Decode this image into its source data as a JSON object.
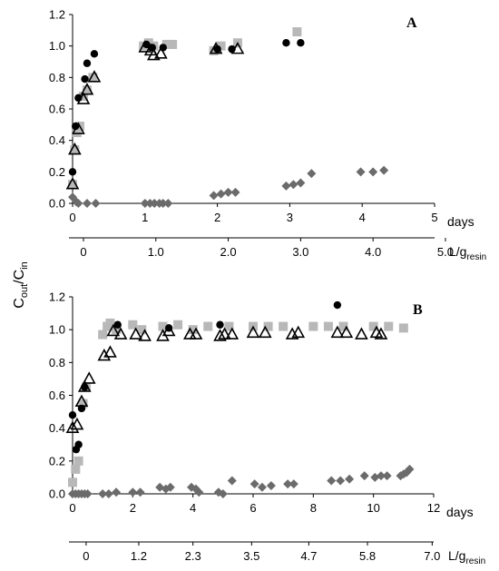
{
  "ylabel": {
    "main": "C",
    "sub1": "out",
    "sep": "/C",
    "sub2": "in"
  },
  "chart_data": [
    {
      "panel": "A",
      "type": "scatter",
      "title": "",
      "ylim": [
        0,
        1.2
      ],
      "yticks": [
        "0.0",
        "0.2",
        "0.4",
        "0.6",
        "0.8",
        "1.0",
        "1.2"
      ],
      "x_days": {
        "label": "days",
        "range": [
          0,
          5
        ],
        "ticks": [
          "0",
          "1",
          "2",
          "3",
          "4",
          "5"
        ]
      },
      "x_volume": {
        "label": "L/g",
        "label_sub": "resin",
        "ticks": [
          {
            "day": 0.15,
            "text": "0"
          },
          {
            "day": 1.15,
            "text": "1.0"
          },
          {
            "day": 2.15,
            "text": "2.0"
          },
          {
            "day": 3.15,
            "text": "3.0"
          },
          {
            "day": 4.15,
            "text": "4.0"
          },
          {
            "day": 5.15,
            "text": "5.0"
          }
        ]
      },
      "colors": {
        "square": "#b8b8b8",
        "circle": "#000000",
        "triangle": "#000000",
        "diamond": "#6b6b6b"
      },
      "series": [
        {
          "marker": "square",
          "points": [
            [
              0.0,
              0.12
            ],
            [
              0.03,
              0.34
            ],
            [
              0.06,
              0.45
            ],
            [
              0.1,
              0.49
            ],
            [
              0.15,
              0.68
            ],
            [
              0.2,
              0.72
            ],
            [
              0.28,
              0.8
            ],
            [
              0.98,
              1.0
            ],
            [
              1.05,
              1.02
            ],
            [
              1.12,
              1.0
            ],
            [
              1.3,
              1.01
            ],
            [
              1.38,
              1.01
            ],
            [
              1.95,
              0.97
            ],
            [
              2.05,
              1.0
            ],
            [
              2.28,
              1.02
            ],
            [
              3.1,
              1.09
            ]
          ]
        },
        {
          "marker": "circle",
          "points": [
            [
              0.0,
              0.2
            ],
            [
              0.04,
              0.49
            ],
            [
              0.08,
              0.67
            ],
            [
              0.17,
              0.79
            ],
            [
              0.2,
              0.89
            ],
            [
              0.3,
              0.95
            ],
            [
              1.02,
              1.01
            ],
            [
              1.1,
              0.99
            ],
            [
              1.25,
              0.99
            ],
            [
              2.0,
              0.98
            ],
            [
              2.2,
              0.98
            ],
            [
              2.95,
              1.02
            ],
            [
              3.15,
              1.02
            ]
          ]
        },
        {
          "marker": "triangle",
          "points": [
            [
              0.0,
              0.12
            ],
            [
              0.03,
              0.34
            ],
            [
              0.08,
              0.47
            ],
            [
              0.15,
              0.66
            ],
            [
              0.2,
              0.72
            ],
            [
              0.3,
              0.8
            ],
            [
              1.0,
              0.99
            ],
            [
              1.08,
              0.97
            ],
            [
              1.12,
              0.94
            ],
            [
              1.22,
              0.95
            ],
            [
              1.98,
              0.98
            ],
            [
              2.28,
              0.98
            ]
          ]
        },
        {
          "marker": "diamond",
          "points": [
            [
              0.0,
              0.04
            ],
            [
              0.05,
              0.01
            ],
            [
              0.08,
              0.0
            ],
            [
              0.2,
              0.0
            ],
            [
              0.32,
              0.0
            ],
            [
              1.0,
              0.0
            ],
            [
              1.07,
              0.0
            ],
            [
              1.13,
              0.0
            ],
            [
              1.2,
              0.0
            ],
            [
              1.25,
              0.0
            ],
            [
              1.32,
              0.0
            ],
            [
              1.95,
              0.05
            ],
            [
              2.05,
              0.06
            ],
            [
              2.15,
              0.07
            ],
            [
              2.25,
              0.07
            ],
            [
              2.95,
              0.11
            ],
            [
              3.05,
              0.12
            ],
            [
              3.15,
              0.13
            ],
            [
              3.3,
              0.19
            ],
            [
              3.98,
              0.2
            ],
            [
              4.15,
              0.2
            ],
            [
              4.3,
              0.21
            ]
          ]
        }
      ]
    },
    {
      "panel": "B",
      "type": "scatter",
      "title": "",
      "ylim": [
        0,
        1.2
      ],
      "yticks": [
        "0.0",
        "0.2",
        "0.4",
        "0.6",
        "0.8",
        "1.0",
        "1.2"
      ],
      "x_days": {
        "label": "days",
        "range": [
          0,
          12
        ],
        "ticks": [
          "0",
          "2",
          "4",
          "6",
          "8",
          "10",
          "12"
        ]
      },
      "x_volume": {
        "label": "L/g",
        "label_sub": "resin",
        "ticks": [
          {
            "day": 0.45,
            "text": "0"
          },
          {
            "day": 2.2,
            "text": "1.2"
          },
          {
            "day": 4.0,
            "text": "2.3"
          },
          {
            "day": 5.95,
            "text": "3.5"
          },
          {
            "day": 7.85,
            "text": "4.7"
          },
          {
            "day": 9.8,
            "text": "5.8"
          },
          {
            "day": 11.95,
            "text": "7.0"
          }
        ]
      },
      "colors": {
        "square": "#b8b8b8",
        "circle": "#000000",
        "triangle": "#000000",
        "diamond": "#6b6b6b"
      },
      "series": [
        {
          "marker": "square",
          "points": [
            [
              0.0,
              0.07
            ],
            [
              0.1,
              0.15
            ],
            [
              0.2,
              0.2
            ],
            [
              0.35,
              0.55
            ],
            [
              0.45,
              0.65
            ],
            [
              1.0,
              0.97
            ],
            [
              1.15,
              1.02
            ],
            [
              1.25,
              1.04
            ],
            [
              1.45,
              1.0
            ],
            [
              2.0,
              1.03
            ],
            [
              2.3,
              1.0
            ],
            [
              3.0,
              1.02
            ],
            [
              3.5,
              1.03
            ],
            [
              4.0,
              1.0
            ],
            [
              4.5,
              1.02
            ],
            [
              5.2,
              1.02
            ],
            [
              6.0,
              1.02
            ],
            [
              6.5,
              1.02
            ],
            [
              7.0,
              1.02
            ],
            [
              8.0,
              1.02
            ],
            [
              8.5,
              1.02
            ],
            [
              9.0,
              1.02
            ],
            [
              10.0,
              1.02
            ],
            [
              10.5,
              1.02
            ],
            [
              11.0,
              1.01
            ]
          ]
        },
        {
          "marker": "circle",
          "points": [
            [
              0.0,
              0.48
            ],
            [
              0.12,
              0.27
            ],
            [
              0.2,
              0.3
            ],
            [
              0.3,
              0.52
            ],
            [
              0.4,
              0.65
            ],
            [
              1.5,
              1.03
            ],
            [
              3.2,
              1.01
            ],
            [
              4.9,
              1.03
            ],
            [
              8.8,
              1.15
            ]
          ]
        },
        {
          "marker": "triangle",
          "points": [
            [
              0.0,
              0.4
            ],
            [
              0.15,
              0.42
            ],
            [
              0.3,
              0.56
            ],
            [
              0.4,
              0.65
            ],
            [
              0.55,
              0.7
            ],
            [
              1.05,
              0.84
            ],
            [
              1.25,
              0.86
            ],
            [
              1.35,
              0.99
            ],
            [
              1.6,
              0.97
            ],
            [
              2.1,
              0.97
            ],
            [
              2.4,
              0.96
            ],
            [
              3.0,
              0.96
            ],
            [
              3.2,
              0.99
            ],
            [
              3.9,
              0.97
            ],
            [
              4.1,
              0.97
            ],
            [
              4.9,
              0.96
            ],
            [
              5.05,
              0.97
            ],
            [
              5.3,
              0.97
            ],
            [
              6.0,
              0.98
            ],
            [
              6.4,
              0.98
            ],
            [
              7.3,
              0.97
            ],
            [
              7.5,
              0.98
            ],
            [
              8.8,
              0.98
            ],
            [
              9.1,
              0.98
            ],
            [
              9.6,
              0.97
            ],
            [
              10.1,
              0.98
            ],
            [
              10.25,
              0.97
            ]
          ]
        },
        {
          "marker": "diamond",
          "points": [
            [
              0.0,
              0.0
            ],
            [
              0.1,
              0.0
            ],
            [
              0.2,
              0.0
            ],
            [
              0.3,
              0.0
            ],
            [
              0.4,
              0.0
            ],
            [
              0.5,
              0.0
            ],
            [
              1.0,
              0.0
            ],
            [
              1.2,
              0.0
            ],
            [
              1.45,
              0.01
            ],
            [
              2.0,
              0.01
            ],
            [
              2.25,
              0.01
            ],
            [
              2.9,
              0.04
            ],
            [
              3.1,
              0.03
            ],
            [
              3.25,
              0.04
            ],
            [
              3.95,
              0.04
            ],
            [
              4.1,
              0.03
            ],
            [
              4.2,
              0.01
            ],
            [
              4.85,
              0.01
            ],
            [
              5.0,
              0.0
            ],
            [
              5.3,
              0.08
            ],
            [
              6.05,
              0.06
            ],
            [
              6.3,
              0.04
            ],
            [
              6.6,
              0.05
            ],
            [
              7.15,
              0.06
            ],
            [
              7.35,
              0.06
            ],
            [
              8.6,
              0.08
            ],
            [
              8.9,
              0.08
            ],
            [
              9.2,
              0.09
            ],
            [
              9.7,
              0.11
            ],
            [
              10.05,
              0.1
            ],
            [
              10.25,
              0.11
            ],
            [
              10.45,
              0.11
            ],
            [
              10.9,
              0.11
            ],
            [
              11.0,
              0.12
            ],
            [
              11.1,
              0.13
            ],
            [
              11.2,
              0.15
            ]
          ]
        }
      ]
    }
  ]
}
